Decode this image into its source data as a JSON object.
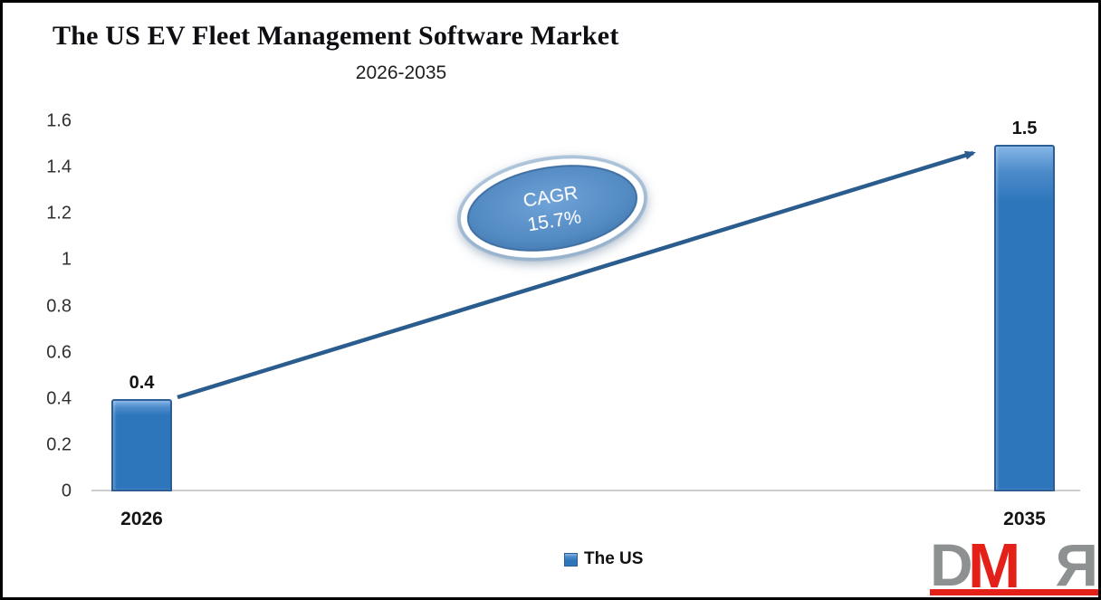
{
  "header": {
    "title": "The US EV Fleet Management Software Market",
    "subtitle": "2026-2035"
  },
  "chart_data": {
    "type": "bar",
    "title": "The US EV Fleet Management Software Market",
    "subtitle": "2026-2035",
    "categories": [
      "2026",
      "2035"
    ],
    "series": [
      {
        "name": "The US",
        "values": [
          0.4,
          1.5
        ]
      }
    ],
    "value_labels": [
      "0.4",
      "1.5"
    ],
    "ytick_labels": [
      "0",
      "0.2",
      "0.4",
      "0.6",
      "0.8",
      "1",
      "1.2",
      "1.4",
      "1.6"
    ],
    "yticks": [
      0,
      0.2,
      0.4,
      0.6,
      0.8,
      1,
      1.2,
      1.4,
      1.6
    ],
    "ylim": [
      0,
      1.6
    ],
    "xlabel": "",
    "ylabel": "",
    "grid": false,
    "legend_position": "bottom",
    "bar_color": "#2E76BC",
    "bar_border_color": "#2B5E94",
    "arrow_color": "#2A5C8E",
    "annotation": {
      "line1": "CAGR",
      "line2": "15.7%"
    }
  },
  "legend": {
    "label": "The US",
    "swatch_color": "#2E76BC"
  },
  "logo": {
    "letter_d": "D",
    "letter_m": "M",
    "letter_r": "R",
    "gray": "#8E9192",
    "red": "#E32119"
  }
}
